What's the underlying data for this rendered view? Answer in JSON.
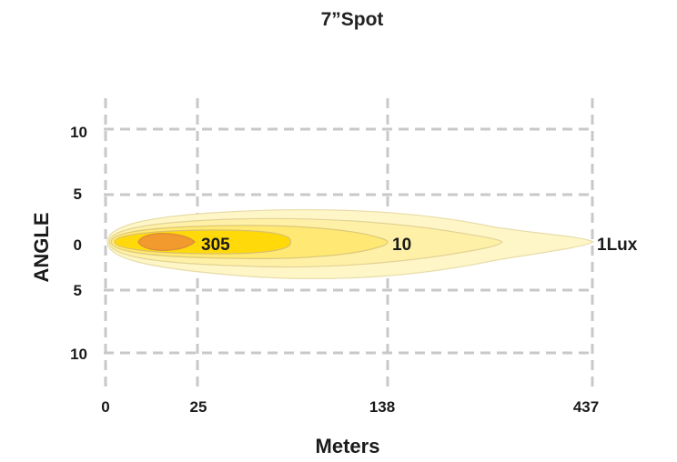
{
  "chart_data": {
    "type": "heatmap",
    "title": "7”Spot",
    "xlabel": "Meters",
    "ylabel": "ANGLE",
    "x_ticks": [
      "0",
      "25",
      "138",
      "437"
    ],
    "y_ticks_upper": [
      "10",
      "5",
      "0"
    ],
    "y_ticks_lower": [
      "5",
      "10"
    ],
    "grid": true,
    "isolux_contours": [
      {
        "lux": "1Lux",
        "distance_m": 437,
        "color": "#fff6c8"
      },
      {
        "lux": "",
        "distance_m": 340,
        "color": "#fff0a8"
      },
      {
        "lux": "10",
        "distance_m": 138,
        "color": "#ffe873"
      },
      {
        "lux": "",
        "distance_m": 80,
        "color": "#ffd90a"
      },
      {
        "lux": "305",
        "distance_m": 25,
        "color": "#f29a2e"
      }
    ],
    "colors": {
      "outline": "#e3d6a0",
      "grid": "#c8c8c8"
    }
  }
}
